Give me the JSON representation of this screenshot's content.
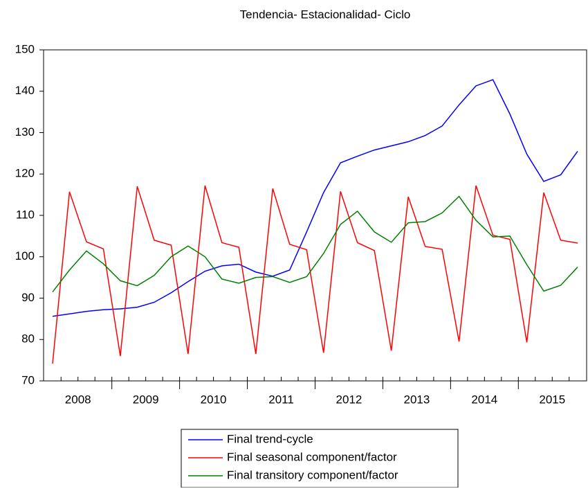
{
  "chart_data": {
    "type": "line",
    "title": "Tendencia- Estacionalidad- Ciclo",
    "categories": [
      "2008",
      null,
      null,
      null,
      "2009",
      null,
      null,
      null,
      "2010",
      null,
      null,
      null,
      "2011",
      null,
      null,
      null,
      "2012",
      null,
      null,
      null,
      "2013",
      null,
      null,
      null,
      "2014",
      null,
      null,
      null,
      "2015",
      null,
      null,
      null
    ],
    "series": [
      {
        "name": "Final trend-cycle",
        "color": "#0000ff",
        "values": [
          85.6,
          86.2,
          86.8,
          87.2,
          87.4,
          87.8,
          89,
          91.3,
          94,
          96.5,
          97.8,
          98.2,
          96.3,
          95.3,
          96.8,
          106,
          115.5,
          122.7,
          124.3,
          125.8,
          126.8,
          127.8,
          129.3,
          131.6,
          136.7,
          141.3,
          142.8,
          134.5,
          124.8,
          118.2,
          119.8,
          125.5
        ]
      },
      {
        "name": "Final seasonal component/factor",
        "color": "#ff0000",
        "values": [
          74.2,
          115.7,
          103.6,
          101.9,
          76,
          117,
          104,
          102.8,
          76.5,
          117.2,
          103.4,
          102.3,
          76.5,
          116.5,
          103,
          101.7,
          76.8,
          115.8,
          103.4,
          101.5,
          77.3,
          114.5,
          102.5,
          101.8,
          79.5,
          117.2,
          105.2,
          104.2,
          79.3,
          115.5,
          104,
          103.3
        ]
      },
      {
        "name": "Final transitory component/factor",
        "color": "#008000",
        "values": [
          91.5,
          96.8,
          101.4,
          98.3,
          94.2,
          93,
          95.5,
          100,
          102.6,
          100,
          94.6,
          93.6,
          95,
          95.2,
          93.8,
          95.2,
          100.8,
          107.8,
          111,
          106,
          103.5,
          108.2,
          108.5,
          110.6,
          114.6,
          108.8,
          104.8,
          105,
          98.1,
          91.7,
          93.1,
          97.5
        ]
      }
    ],
    "ylim": [
      70,
      150
    ],
    "yticks": [
      70,
      80,
      90,
      100,
      110,
      120,
      130,
      140,
      150
    ],
    "grid": false
  }
}
